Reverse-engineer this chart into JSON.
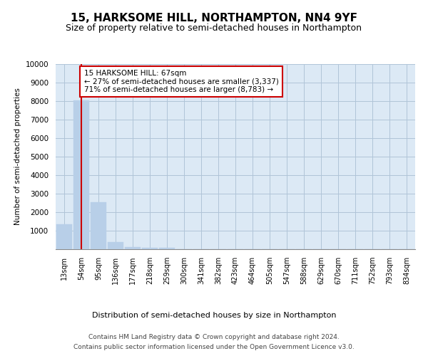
{
  "title": "15, HARKSOME HILL, NORTHAMPTON, NN4 9YF",
  "subtitle": "Size of property relative to semi-detached houses in Northampton",
  "xlabel_bottom": "Distribution of semi-detached houses by size in Northampton",
  "ylabel": "Number of semi-detached properties",
  "footnote1": "Contains HM Land Registry data © Crown copyright and database right 2024.",
  "footnote2": "Contains public sector information licensed under the Open Government Licence v3.0.",
  "bar_labels": [
    "13sqm",
    "54sqm",
    "95sqm",
    "136sqm",
    "177sqm",
    "218sqm",
    "259sqm",
    "300sqm",
    "341sqm",
    "382sqm",
    "423sqm",
    "464sqm",
    "505sqm",
    "547sqm",
    "588sqm",
    "629sqm",
    "670sqm",
    "711sqm",
    "752sqm",
    "793sqm",
    "834sqm"
  ],
  "bar_values": [
    1340,
    8020,
    2530,
    380,
    130,
    90,
    90,
    0,
    0,
    0,
    0,
    0,
    0,
    0,
    0,
    0,
    0,
    0,
    0,
    0,
    0
  ],
  "bar_color": "#b8cfe8",
  "bar_edge_color": "#b8cfe8",
  "property_line_x": 1.0,
  "property_line_color": "#cc0000",
  "annotation_text": "15 HARKSOME HILL: 67sqm\n← 27% of semi-detached houses are smaller (3,337)\n71% of semi-detached houses are larger (8,783) →",
  "annotation_box_color": "#ffffff",
  "annotation_box_edge": "#cc0000",
  "ylim": [
    0,
    10000
  ],
  "yticks": [
    0,
    1000,
    2000,
    3000,
    4000,
    5000,
    6000,
    7000,
    8000,
    9000,
    10000
  ],
  "background_color": "#ffffff",
  "axes_bg_color": "#dce9f5",
  "grid_color": "#b0c4d8",
  "title_fontsize": 11,
  "subtitle_fontsize": 9
}
